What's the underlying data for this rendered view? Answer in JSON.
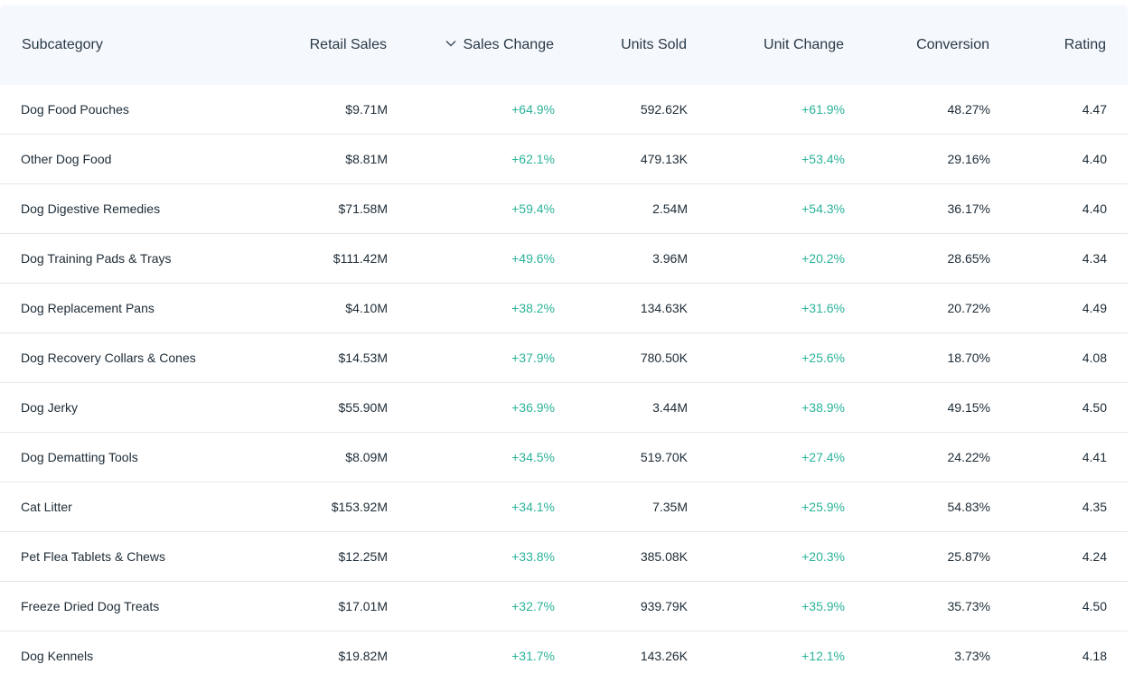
{
  "columns": {
    "subcategory": "Subcategory",
    "retail_sales": "Retail Sales",
    "sales_change": "Sales Change",
    "units_sold": "Units Sold",
    "unit_change": "Unit Change",
    "conversion": "Conversion",
    "rating": "Rating"
  },
  "sort": {
    "column": "sales_change",
    "direction": "desc",
    "icon": "chevron-down-icon"
  },
  "colors": {
    "positive": "#2bb39a",
    "header_bg": "#f5f8fc",
    "divider": "#e3e7eb"
  },
  "rows": [
    {
      "subcategory": "Dog Food Pouches",
      "retail_sales": "$9.71M",
      "sales_change": "+64.9%",
      "units_sold": "592.62K",
      "unit_change": "+61.9%",
      "conversion": "48.27%",
      "rating": "4.47"
    },
    {
      "subcategory": "Other Dog Food",
      "retail_sales": "$8.81M",
      "sales_change": "+62.1%",
      "units_sold": "479.13K",
      "unit_change": "+53.4%",
      "conversion": "29.16%",
      "rating": "4.40"
    },
    {
      "subcategory": "Dog Digestive Remedies",
      "retail_sales": "$71.58M",
      "sales_change": "+59.4%",
      "units_sold": "2.54M",
      "unit_change": "+54.3%",
      "conversion": "36.17%",
      "rating": "4.40"
    },
    {
      "subcategory": "Dog Training Pads & Trays",
      "retail_sales": "$111.42M",
      "sales_change": "+49.6%",
      "units_sold": "3.96M",
      "unit_change": "+20.2%",
      "conversion": "28.65%",
      "rating": "4.34"
    },
    {
      "subcategory": "Dog Replacement Pans",
      "retail_sales": "$4.10M",
      "sales_change": "+38.2%",
      "units_sold": "134.63K",
      "unit_change": "+31.6%",
      "conversion": "20.72%",
      "rating": "4.49"
    },
    {
      "subcategory": "Dog Recovery Collars & Cones",
      "retail_sales": "$14.53M",
      "sales_change": "+37.9%",
      "units_sold": "780.50K",
      "unit_change": "+25.6%",
      "conversion": "18.70%",
      "rating": "4.08"
    },
    {
      "subcategory": "Dog Jerky",
      "retail_sales": "$55.90M",
      "sales_change": "+36.9%",
      "units_sold": "3.44M",
      "unit_change": "+38.9%",
      "conversion": "49.15%",
      "rating": "4.50"
    },
    {
      "subcategory": "Dog Dematting Tools",
      "retail_sales": "$8.09M",
      "sales_change": "+34.5%",
      "units_sold": "519.70K",
      "unit_change": "+27.4%",
      "conversion": "24.22%",
      "rating": "4.41"
    },
    {
      "subcategory": "Cat Litter",
      "retail_sales": "$153.92M",
      "sales_change": "+34.1%",
      "units_sold": "7.35M",
      "unit_change": "+25.9%",
      "conversion": "54.83%",
      "rating": "4.35"
    },
    {
      "subcategory": "Pet Flea Tablets & Chews",
      "retail_sales": "$12.25M",
      "sales_change": "+33.8%",
      "units_sold": "385.08K",
      "unit_change": "+20.3%",
      "conversion": "25.87%",
      "rating": "4.24"
    },
    {
      "subcategory": "Freeze Dried Dog Treats",
      "retail_sales": "$17.01M",
      "sales_change": "+32.7%",
      "units_sold": "939.79K",
      "unit_change": "+35.9%",
      "conversion": "35.73%",
      "rating": "4.50"
    },
    {
      "subcategory": "Dog Kennels",
      "retail_sales": "$19.82M",
      "sales_change": "+31.7%",
      "units_sold": "143.26K",
      "unit_change": "+12.1%",
      "conversion": "3.73%",
      "rating": "4.18"
    }
  ]
}
